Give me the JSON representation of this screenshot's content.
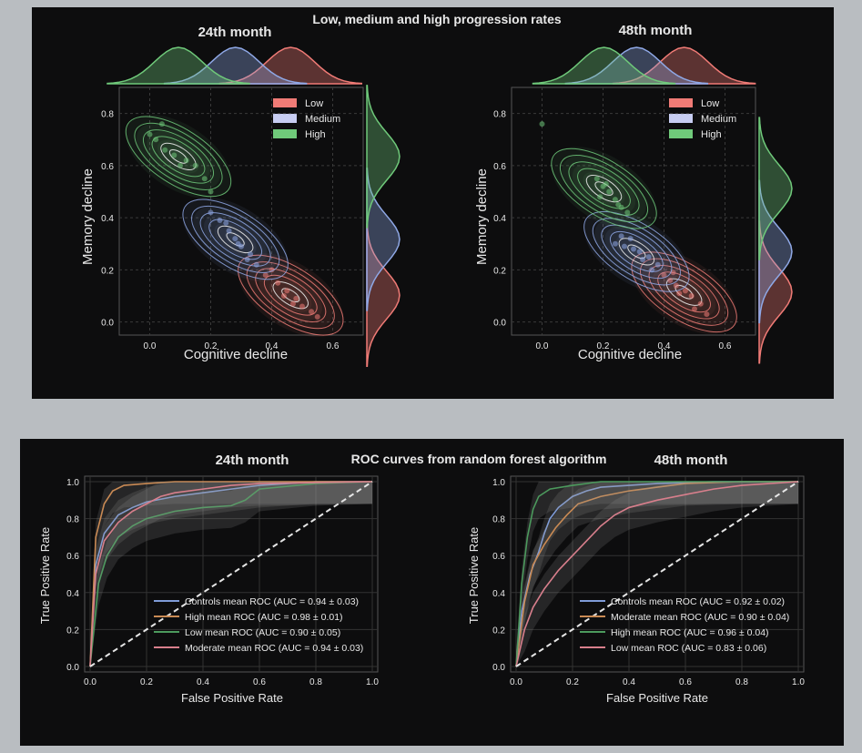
{
  "panels": {
    "top": {
      "title": "Low, medium and high progression rates",
      "plots": [
        {
          "title": "24th month",
          "xlabel": "Cognitive decline",
          "ylabel": "Memory decline",
          "xticks": [
            "0.0",
            "0.2",
            "0.4",
            "0.6"
          ],
          "yticks": [
            "0.0",
            "0.2",
            "0.4",
            "0.6",
            "0.8"
          ],
          "legend": [
            "Low",
            "Medium",
            "High"
          ]
        },
        {
          "title": "48th month",
          "xlabel": "Cognitive decline",
          "ylabel": "Memory decline",
          "xticks": [
            "0.0",
            "0.2",
            "0.4",
            "0.6"
          ],
          "yticks": [
            "0.0",
            "0.2",
            "0.4",
            "0.6",
            "0.8"
          ],
          "legend": [
            "Low",
            "Medium",
            "High"
          ]
        }
      ]
    },
    "bottom": {
      "title": "ROC curves from random forest algorithm",
      "plots": [
        {
          "title": "24th month",
          "xlabel": "False Positive Rate",
          "ylabel": "True Positive Rate",
          "xticks": [
            "0.0",
            "0.2",
            "0.4",
            "0.6",
            "0.8",
            "1.0"
          ],
          "yticks": [
            "0.0",
            "0.2",
            "0.4",
            "0.6",
            "0.8",
            "1.0"
          ],
          "legend": [
            "Controls mean ROC (AUC = 0.94 ± 0.03)",
            "High mean ROC (AUC = 0.98 ± 0.01)",
            "Low mean ROC (AUC = 0.90 ± 0.05)",
            "Moderate mean ROC (AUC = 0.94 ± 0.03)"
          ]
        },
        {
          "title": "48th month",
          "xlabel": "False Positive Rate",
          "ylabel": "True Positive Rate",
          "xticks": [
            "0.0",
            "0.2",
            "0.4",
            "0.6",
            "0.8",
            "1.0"
          ],
          "yticks": [
            "0.0",
            "0.2",
            "0.4",
            "0.6",
            "0.8",
            "1.0"
          ],
          "legend": [
            "Controls mean ROC (AUC = 0.92 ± 0.02)",
            "Moderate mean ROC (AUC = 0.90 ± 0.04)",
            "High mean ROC (AUC = 0.96 ± 0.04)",
            "Low mean ROC (AUC = 0.83 ± 0.06)"
          ]
        }
      ]
    }
  },
  "colors": {
    "Low": "#f07b76",
    "Medium": "#8fa8e6",
    "High": "#6fc97a",
    "Controls": "#7f9cd8",
    "HighROC": "#c98a54",
    "LowROC": "#4c9a5d",
    "Moderate": "#d87f8c",
    "diagonal": "#e6e6e6"
  },
  "chart_data": [
    {
      "type": "scatter",
      "title": "24th month",
      "xlabel": "Cognitive decline",
      "ylabel": "Memory decline",
      "xlim": [
        -0.1,
        0.7
      ],
      "ylim": [
        -0.05,
        0.9
      ],
      "series": [
        {
          "name": "Low",
          "points": [
            [
              0.38,
              0.18
            ],
            [
              0.42,
              0.15
            ],
            [
              0.45,
              0.12
            ],
            [
              0.48,
              0.09
            ],
            [
              0.5,
              0.06
            ],
            [
              0.53,
              0.04
            ],
            [
              0.4,
              0.2
            ],
            [
              0.44,
              0.1
            ],
            [
              0.47,
              0.07
            ],
            [
              0.55,
              0.02
            ]
          ]
        },
        {
          "name": "Medium",
          "points": [
            [
              0.2,
              0.42
            ],
            [
              0.23,
              0.39
            ],
            [
              0.26,
              0.35
            ],
            [
              0.28,
              0.32
            ],
            [
              0.3,
              0.29
            ],
            [
              0.33,
              0.26
            ],
            [
              0.25,
              0.38
            ],
            [
              0.29,
              0.3
            ],
            [
              0.32,
              0.24
            ],
            [
              0.35,
              0.22
            ]
          ]
        },
        {
          "name": "High",
          "points": [
            [
              0.0,
              0.72
            ],
            [
              0.02,
              0.7
            ],
            [
              0.05,
              0.66
            ],
            [
              0.08,
              0.64
            ],
            [
              0.12,
              0.62
            ],
            [
              0.15,
              0.6
            ],
            [
              0.18,
              0.55
            ],
            [
              0.1,
              0.6
            ],
            [
              0.04,
              0.76
            ],
            [
              0.2,
              0.5
            ]
          ]
        }
      ]
    },
    {
      "type": "scatter",
      "title": "48th month",
      "xlabel": "Cognitive decline",
      "ylabel": "Memory decline",
      "xlim": [
        -0.1,
        0.7
      ],
      "ylim": [
        -0.05,
        0.9
      ],
      "series": [
        {
          "name": "Low",
          "points": [
            [
              0.4,
              0.18
            ],
            [
              0.42,
              0.16
            ],
            [
              0.44,
              0.14
            ],
            [
              0.47,
              0.12
            ],
            [
              0.49,
              0.1
            ],
            [
              0.52,
              0.07
            ],
            [
              0.45,
              0.11
            ],
            [
              0.5,
              0.05
            ],
            [
              0.54,
              0.03
            ],
            [
              0.43,
              0.19
            ]
          ]
        },
        {
          "name": "Medium",
          "points": [
            [
              0.24,
              0.3
            ],
            [
              0.27,
              0.29
            ],
            [
              0.3,
              0.28
            ],
            [
              0.32,
              0.27
            ],
            [
              0.35,
              0.25
            ],
            [
              0.38,
              0.22
            ],
            [
              0.29,
              0.32
            ],
            [
              0.33,
              0.24
            ],
            [
              0.26,
              0.33
            ],
            [
              0.36,
              0.2
            ]
          ]
        },
        {
          "name": "High",
          "points": [
            [
              0.18,
              0.55
            ],
            [
              0.2,
              0.52
            ],
            [
              0.22,
              0.5
            ],
            [
              0.24,
              0.47
            ],
            [
              0.26,
              0.44
            ],
            [
              0.28,
              0.42
            ],
            [
              0.21,
              0.53
            ],
            [
              0.25,
              0.45
            ],
            [
              0.19,
              0.48
            ],
            [
              0.0,
              0.76
            ]
          ]
        }
      ]
    },
    {
      "type": "line",
      "title": "24th month",
      "xlabel": "False Positive Rate",
      "ylabel": "True Positive Rate",
      "xlim": [
        0,
        1
      ],
      "ylim": [
        0,
        1
      ],
      "series": [
        {
          "name": "Controls mean ROC (AUC = 0.94 ± 0.03)",
          "x": [
            0,
            0.02,
            0.05,
            0.1,
            0.15,
            0.2,
            0.3,
            0.4,
            0.5,
            0.6,
            0.7,
            0.8,
            1.0
          ],
          "y": [
            0,
            0.55,
            0.72,
            0.82,
            0.86,
            0.89,
            0.92,
            0.94,
            0.96,
            0.98,
            0.99,
            1.0,
            1.0
          ]
        },
        {
          "name": "High mean ROC (AUC = 0.98 ± 0.01)",
          "x": [
            0,
            0.02,
            0.05,
            0.08,
            0.12,
            0.2,
            0.3,
            1.0
          ],
          "y": [
            0,
            0.7,
            0.88,
            0.95,
            0.98,
            0.99,
            1.0,
            1.0
          ]
        },
        {
          "name": "Low mean ROC (AUC = 0.90 ± 0.05)",
          "x": [
            0,
            0.03,
            0.06,
            0.1,
            0.15,
            0.2,
            0.3,
            0.4,
            0.5,
            0.55,
            0.6,
            0.8,
            1.0
          ],
          "y": [
            0,
            0.45,
            0.6,
            0.7,
            0.76,
            0.8,
            0.84,
            0.86,
            0.87,
            0.9,
            0.96,
            0.99,
            1.0
          ]
        },
        {
          "name": "Moderate mean ROC (AUC = 0.94 ± 0.03)",
          "x": [
            0,
            0.02,
            0.05,
            0.1,
            0.15,
            0.2,
            0.25,
            0.3,
            0.4,
            0.5,
            0.6,
            1.0
          ],
          "y": [
            0,
            0.5,
            0.68,
            0.78,
            0.84,
            0.88,
            0.92,
            0.94,
            0.96,
            0.98,
            0.99,
            1.0
          ]
        },
        {
          "name": "chance",
          "x": [
            0,
            1
          ],
          "y": [
            0,
            1
          ]
        }
      ]
    },
    {
      "type": "line",
      "title": "48th month",
      "xlabel": "False Positive Rate",
      "ylabel": "True Positive Rate",
      "xlim": [
        0,
        1
      ],
      "ylim": [
        0,
        1
      ],
      "series": [
        {
          "name": "Controls mean ROC (AUC = 0.92 ± 0.02)",
          "x": [
            0,
            0.02,
            0.05,
            0.08,
            0.1,
            0.12,
            0.15,
            0.2,
            0.25,
            0.3,
            0.4,
            0.5,
            0.7,
            1.0
          ],
          "y": [
            0,
            0.3,
            0.5,
            0.62,
            0.72,
            0.8,
            0.86,
            0.92,
            0.95,
            0.97,
            0.98,
            0.99,
            1.0,
            1.0
          ]
        },
        {
          "name": "Moderate mean ROC (AUC = 0.90 ± 0.04)",
          "x": [
            0,
            0.03,
            0.06,
            0.1,
            0.14,
            0.18,
            0.22,
            0.3,
            0.4,
            0.5,
            0.6,
            0.8,
            1.0
          ],
          "y": [
            0,
            0.35,
            0.55,
            0.66,
            0.75,
            0.82,
            0.88,
            0.92,
            0.95,
            0.97,
            0.99,
            1.0,
            1.0
          ]
        },
        {
          "name": "High mean ROC (AUC = 0.96 ± 0.04)",
          "x": [
            0,
            0.02,
            0.04,
            0.06,
            0.08,
            0.12,
            0.2,
            0.3,
            1.0
          ],
          "y": [
            0,
            0.45,
            0.7,
            0.85,
            0.92,
            0.96,
            0.98,
            1.0,
            1.0
          ]
        },
        {
          "name": "Low mean ROC (AUC = 0.83 ± 0.06)",
          "x": [
            0,
            0.03,
            0.06,
            0.1,
            0.15,
            0.2,
            0.25,
            0.3,
            0.35,
            0.4,
            0.5,
            0.6,
            0.7,
            0.8,
            1.0
          ],
          "y": [
            0,
            0.2,
            0.32,
            0.42,
            0.52,
            0.6,
            0.68,
            0.76,
            0.82,
            0.86,
            0.9,
            0.93,
            0.96,
            0.98,
            1.0
          ]
        },
        {
          "name": "chance",
          "x": [
            0,
            1
          ],
          "y": [
            0,
            1
          ]
        }
      ]
    }
  ]
}
